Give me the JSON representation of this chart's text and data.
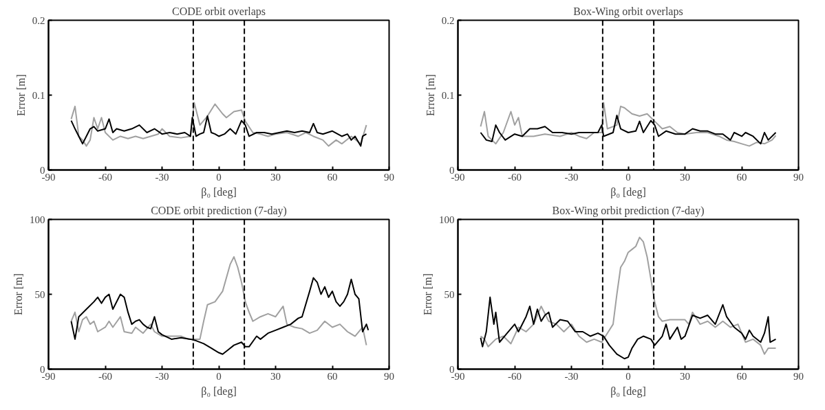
{
  "chart_data": [
    {
      "type": "line",
      "title": "CODE orbit overlaps",
      "xlabel": "β₀ [deg]",
      "ylabel": "Error [m]",
      "xlim": [
        -90,
        90
      ],
      "ylim": [
        0,
        0.2
      ],
      "xticks": [
        -90,
        -60,
        -30,
        0,
        30,
        60,
        90
      ],
      "yticks": [
        0,
        0.1,
        0.2
      ],
      "grid": false,
      "ref_lines": [
        {
          "axis": "x",
          "value": -13.5,
          "line_style": "dashed",
          "color": "#000000"
        },
        {
          "axis": "x",
          "value": 13.5,
          "line_style": "dashed",
          "color": "#000000"
        }
      ],
      "series": [
        {
          "color": "#a0a0a0",
          "x": [
            -78,
            -76,
            -74,
            -72,
            -70,
            -68,
            -66,
            -64,
            -62,
            -60,
            -56,
            -52,
            -48,
            -44,
            -40,
            -36,
            -32,
            -30,
            -26,
            -20,
            -15,
            -13,
            -10,
            -6,
            -4,
            -2,
            2,
            4,
            8,
            12,
            14,
            18,
            22,
            26,
            30,
            36,
            42,
            46,
            50,
            55,
            58,
            62,
            65,
            70,
            75,
            78
          ],
          "values": [
            0.068,
            0.085,
            0.045,
            0.04,
            0.032,
            0.04,
            0.07,
            0.055,
            0.07,
            0.05,
            0.04,
            0.045,
            0.042,
            0.045,
            0.042,
            0.045,
            0.048,
            0.055,
            0.045,
            0.043,
            0.045,
            0.09,
            0.06,
            0.072,
            0.08,
            0.088,
            0.075,
            0.07,
            0.078,
            0.08,
            0.065,
            0.05,
            0.048,
            0.045,
            0.048,
            0.05,
            0.045,
            0.05,
            0.045,
            0.04,
            0.032,
            0.04,
            0.035,
            0.045,
            0.035,
            0.06
          ]
        },
        {
          "color": "#000000",
          "x": [
            -78,
            -76,
            -74,
            -72,
            -70,
            -68,
            -66,
            -64,
            -60,
            -58,
            -56,
            -54,
            -50,
            -46,
            -42,
            -38,
            -34,
            -30,
            -26,
            -22,
            -18,
            -15,
            -14,
            -12,
            -10,
            -8,
            -6,
            -4,
            -2,
            0,
            3,
            6,
            9,
            12,
            14,
            16,
            20,
            24,
            28,
            32,
            36,
            40,
            44,
            48,
            50,
            52,
            55,
            60,
            65,
            68,
            70,
            72,
            75,
            76,
            78
          ],
          "values": [
            0.066,
            0.055,
            0.045,
            0.035,
            0.045,
            0.055,
            0.058,
            0.052,
            0.055,
            0.068,
            0.05,
            0.055,
            0.052,
            0.055,
            0.06,
            0.05,
            0.055,
            0.048,
            0.05,
            0.048,
            0.05,
            0.045,
            0.07,
            0.045,
            0.048,
            0.05,
            0.072,
            0.05,
            0.048,
            0.045,
            0.048,
            0.055,
            0.048,
            0.066,
            0.06,
            0.045,
            0.05,
            0.05,
            0.048,
            0.05,
            0.052,
            0.05,
            0.052,
            0.05,
            0.062,
            0.05,
            0.048,
            0.052,
            0.045,
            0.048,
            0.04,
            0.045,
            0.032,
            0.045,
            0.048
          ]
        }
      ]
    },
    {
      "type": "line",
      "title": "Box-Wing orbit overlaps",
      "xlabel": "β₀ [deg]",
      "ylabel": "Error [m]",
      "xlim": [
        -90,
        90
      ],
      "ylim": [
        0,
        0.2
      ],
      "xticks": [
        -90,
        -60,
        -30,
        0,
        30,
        60,
        90
      ],
      "yticks": [
        0,
        0.1,
        0.2
      ],
      "grid": false,
      "ref_lines": [
        {
          "axis": "x",
          "value": -13.5,
          "line_style": "dashed",
          "color": "#000000"
        },
        {
          "axis": "x",
          "value": 13.5,
          "line_style": "dashed",
          "color": "#000000"
        }
      ],
      "series": [
        {
          "color": "#a0a0a0",
          "x": [
            -78,
            -76,
            -74,
            -70,
            -66,
            -62,
            -60,
            -58,
            -56,
            -50,
            -44,
            -36,
            -30,
            -26,
            -22,
            -18,
            -14,
            -13,
            -11,
            -6,
            -4,
            -2,
            2,
            6,
            10,
            14,
            18,
            22,
            26,
            30,
            36,
            42,
            48,
            52,
            56,
            60,
            64,
            68,
            72,
            76,
            78
          ],
          "values": [
            0.058,
            0.078,
            0.045,
            0.035,
            0.05,
            0.078,
            0.06,
            0.07,
            0.045,
            0.045,
            0.048,
            0.045,
            0.05,
            0.045,
            0.042,
            0.05,
            0.05,
            0.09,
            0.055,
            0.06,
            0.085,
            0.083,
            0.075,
            0.072,
            0.075,
            0.065,
            0.055,
            0.058,
            0.05,
            0.048,
            0.05,
            0.05,
            0.045,
            0.04,
            0.038,
            0.035,
            0.032,
            0.037,
            0.035,
            0.04,
            0.046
          ]
        },
        {
          "color": "#000000",
          "x": [
            -78,
            -75,
            -72,
            -70,
            -68,
            -65,
            -60,
            -56,
            -52,
            -48,
            -44,
            -40,
            -35,
            -30,
            -26,
            -20,
            -16,
            -14,
            -13,
            -8,
            -6,
            -4,
            0,
            4,
            6,
            8,
            12,
            14,
            16,
            20,
            25,
            30,
            34,
            38,
            42,
            46,
            50,
            54,
            56,
            60,
            62,
            66,
            70,
            72,
            74,
            78
          ],
          "values": [
            0.05,
            0.04,
            0.038,
            0.06,
            0.05,
            0.04,
            0.048,
            0.045,
            0.055,
            0.055,
            0.058,
            0.05,
            0.05,
            0.048,
            0.05,
            0.05,
            0.05,
            0.06,
            0.045,
            0.05,
            0.073,
            0.055,
            0.05,
            0.052,
            0.065,
            0.05,
            0.066,
            0.06,
            0.045,
            0.052,
            0.048,
            0.048,
            0.055,
            0.052,
            0.052,
            0.048,
            0.048,
            0.04,
            0.05,
            0.045,
            0.05,
            0.045,
            0.035,
            0.05,
            0.04,
            0.05
          ]
        }
      ]
    },
    {
      "type": "line",
      "title": "CODE orbit prediction (7-day)",
      "xlabel": "β₀ [deg]",
      "ylabel": "Error [m]",
      "xlim": [
        -90,
        90
      ],
      "ylim": [
        0,
        100
      ],
      "xticks": [
        -90,
        -60,
        -30,
        0,
        30,
        60,
        90
      ],
      "yticks": [
        0,
        50,
        100
      ],
      "grid": false,
      "ref_lines": [
        {
          "axis": "x",
          "value": -13.5,
          "line_style": "dashed",
          "color": "#000000"
        },
        {
          "axis": "x",
          "value": 13.5,
          "line_style": "dashed",
          "color": "#000000"
        }
      ],
      "series": [
        {
          "color": "#a0a0a0",
          "x": [
            -78,
            -76,
            -74,
            -72,
            -70,
            -68,
            -66,
            -64,
            -60,
            -58,
            -56,
            -52,
            -50,
            -46,
            -44,
            -40,
            -36,
            -34,
            -30,
            -26,
            -20,
            -16,
            -12,
            -10,
            -8,
            -6,
            -2,
            2,
            6,
            8,
            10,
            12,
            14,
            16,
            18,
            22,
            26,
            30,
            34,
            36,
            40,
            44,
            48,
            52,
            56,
            60,
            64,
            68,
            72,
            76,
            78
          ],
          "values": [
            32,
            38,
            25,
            33,
            35,
            30,
            32,
            25,
            28,
            32,
            28,
            35,
            25,
            24,
            28,
            24,
            30,
            25,
            22,
            22,
            22,
            20,
            20,
            20,
            32,
            43,
            45,
            52,
            70,
            75,
            68,
            58,
            45,
            38,
            32,
            35,
            37,
            35,
            42,
            30,
            28,
            27,
            24,
            26,
            32,
            28,
            30,
            25,
            22,
            28,
            16
          ]
        },
        {
          "color": "#000000",
          "x": [
            -78,
            -76,
            -74,
            -70,
            -66,
            -64,
            -62,
            -60,
            -58,
            -56,
            -52,
            -50,
            -48,
            -46,
            -44,
            -42,
            -40,
            -38,
            -36,
            -34,
            -32,
            -30,
            -25,
            -20,
            -15,
            -12,
            -8,
            -4,
            0,
            2,
            5,
            8,
            12,
            14,
            16,
            20,
            22,
            26,
            30,
            34,
            38,
            42,
            44,
            48,
            50,
            52,
            54,
            56,
            58,
            60,
            62,
            64,
            66,
            68,
            70,
            72,
            74,
            76,
            78,
            79
          ],
          "values": [
            32,
            20,
            35,
            40,
            45,
            48,
            44,
            48,
            50,
            40,
            50,
            48,
            38,
            30,
            32,
            33,
            30,
            28,
            27,
            35,
            25,
            23,
            20,
            21,
            20,
            19,
            17,
            14,
            11,
            10,
            13,
            16,
            18,
            15,
            15,
            22,
            20,
            24,
            26,
            28,
            30,
            34,
            35,
            52,
            61,
            58,
            50,
            55,
            48,
            52,
            45,
            42,
            45,
            50,
            60,
            50,
            47,
            25,
            30,
            26
          ]
        }
      ]
    },
    {
      "type": "line",
      "title": "Box-Wing orbit prediction (7-day)",
      "xlabel": "β₀ [deg]",
      "ylabel": "Error [m]",
      "xlim": [
        -90,
        90
      ],
      "ylim": [
        0,
        100
      ],
      "xticks": [
        -90,
        -60,
        -30,
        0,
        30,
        60,
        90
      ],
      "yticks": [
        0,
        50,
        100
      ],
      "grid": false,
      "ref_lines": [
        {
          "axis": "x",
          "value": -13.5,
          "line_style": "dashed",
          "color": "#000000"
        },
        {
          "axis": "x",
          "value": 13.5,
          "line_style": "dashed",
          "color": "#000000"
        }
      ],
      "series": [
        {
          "color": "#a0a0a0",
          "x": [
            -78,
            -76,
            -74,
            -70,
            -66,
            -62,
            -58,
            -54,
            -50,
            -46,
            -42,
            -38,
            -34,
            -30,
            -26,
            -22,
            -18,
            -14,
            -12,
            -8,
            -6,
            -4,
            -2,
            0,
            2,
            4,
            6,
            8,
            10,
            12,
            14,
            16,
            18,
            22,
            26,
            30,
            32,
            34,
            38,
            42,
            46,
            50,
            54,
            58,
            62,
            66,
            70,
            72,
            74,
            78
          ],
          "values": [
            22,
            20,
            15,
            20,
            22,
            17,
            28,
            25,
            30,
            42,
            32,
            30,
            25,
            30,
            22,
            18,
            20,
            18,
            22,
            30,
            50,
            68,
            72,
            78,
            80,
            82,
            88,
            85,
            75,
            60,
            45,
            35,
            32,
            33,
            33,
            33,
            30,
            38,
            30,
            32,
            28,
            32,
            28,
            30,
            18,
            20,
            16,
            10,
            14,
            14
          ]
        },
        {
          "color": "#000000",
          "x": [
            -78,
            -77,
            -75,
            -73,
            -71,
            -70,
            -68,
            -64,
            -60,
            -58,
            -54,
            -52,
            -50,
            -48,
            -46,
            -44,
            -42,
            -40,
            -36,
            -32,
            -28,
            -24,
            -20,
            -16,
            -13,
            -10,
            -6,
            -2,
            0,
            2,
            5,
            8,
            12,
            14,
            18,
            20,
            22,
            26,
            28,
            30,
            34,
            38,
            42,
            46,
            50,
            52,
            56,
            60,
            62,
            64,
            66,
            70,
            72,
            74,
            75,
            78
          ],
          "values": [
            21,
            15,
            25,
            48,
            30,
            38,
            18,
            24,
            30,
            25,
            35,
            42,
            30,
            40,
            32,
            36,
            38,
            28,
            33,
            32,
            25,
            25,
            22,
            24,
            22,
            16,
            10,
            7,
            8,
            14,
            20,
            22,
            20,
            16,
            22,
            30,
            20,
            28,
            20,
            22,
            36,
            34,
            36,
            30,
            43,
            35,
            28,
            24,
            20,
            26,
            22,
            18,
            24,
            35,
            18,
            20
          ]
        }
      ]
    }
  ]
}
